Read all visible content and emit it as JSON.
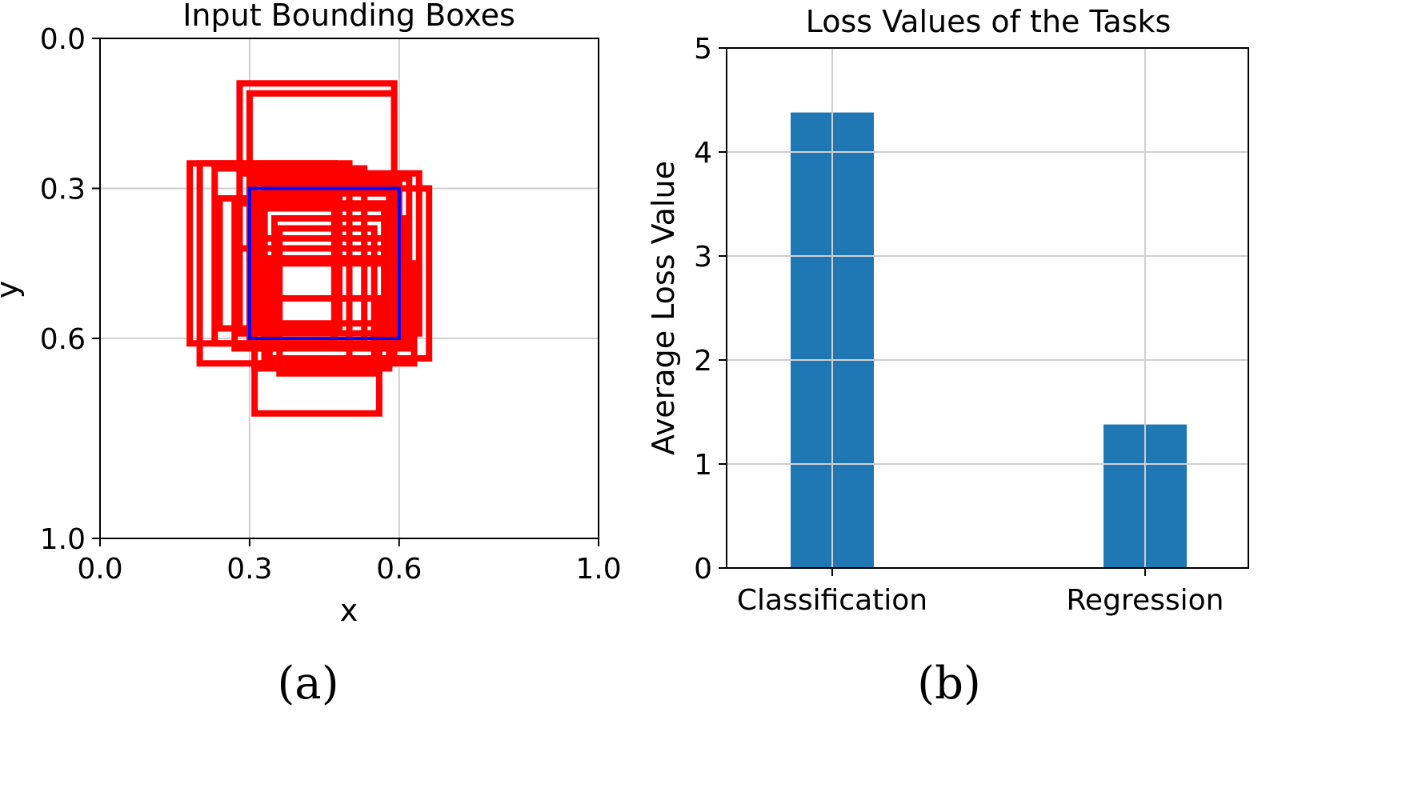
{
  "panel_labels": [
    "(a)",
    "(b)"
  ],
  "chart_data": [
    {
      "type": "scatter",
      "title": "Input Bounding Boxes",
      "xlabel": "x",
      "ylabel": "y",
      "xlim": [
        0.0,
        1.0
      ],
      "ylim": [
        1.0,
        0.0
      ],
      "y_inverted": true,
      "xticks": [
        "0.0",
        "0.3",
        "0.6",
        "1.0"
      ],
      "yticks": [
        "0.0",
        "0.3",
        "0.6",
        "1.0"
      ],
      "grid": true,
      "colors": {
        "input_boxes": "#ff0000",
        "reference_box": "#0000ff"
      },
      "reference_box": {
        "x1": 0.3,
        "y1": 0.3,
        "x2": 0.6,
        "y2": 0.6
      },
      "boxes": [
        {
          "x1": 0.28,
          "y1": 0.09,
          "x2": 0.59,
          "y2": 0.42
        },
        {
          "x1": 0.3,
          "y1": 0.11,
          "x2": 0.59,
          "y2": 0.44
        },
        {
          "x1": 0.18,
          "y1": 0.25,
          "x2": 0.47,
          "y2": 0.61
        },
        {
          "x1": 0.2,
          "y1": 0.25,
          "x2": 0.5,
          "y2": 0.65
        },
        {
          "x1": 0.23,
          "y1": 0.26,
          "x2": 0.53,
          "y2": 0.61
        },
        {
          "x1": 0.28,
          "y1": 0.27,
          "x2": 0.64,
          "y2": 0.59
        },
        {
          "x1": 0.31,
          "y1": 0.28,
          "x2": 0.62,
          "y2": 0.62
        },
        {
          "x1": 0.3,
          "y1": 0.29,
          "x2": 0.6,
          "y2": 0.61
        },
        {
          "x1": 0.33,
          "y1": 0.3,
          "x2": 0.66,
          "y2": 0.64
        },
        {
          "x1": 0.33,
          "y1": 0.34,
          "x2": 0.59,
          "y2": 0.64
        },
        {
          "x1": 0.35,
          "y1": 0.36,
          "x2": 0.61,
          "y2": 0.62
        },
        {
          "x1": 0.36,
          "y1": 0.38,
          "x2": 0.55,
          "y2": 0.67
        },
        {
          "x1": 0.31,
          "y1": 0.4,
          "x2": 0.58,
          "y2": 0.66
        },
        {
          "x1": 0.34,
          "y1": 0.45,
          "x2": 0.63,
          "y2": 0.65
        },
        {
          "x1": 0.31,
          "y1": 0.52,
          "x2": 0.56,
          "y2": 0.75
        },
        {
          "x1": 0.24,
          "y1": 0.32,
          "x2": 0.48,
          "y2": 0.58
        },
        {
          "x1": 0.27,
          "y1": 0.33,
          "x2": 0.57,
          "y2": 0.62
        },
        {
          "x1": 0.32,
          "y1": 0.31,
          "x2": 0.58,
          "y2": 0.57
        }
      ]
    },
    {
      "type": "bar",
      "title": "Loss Values of the Tasks",
      "xlabel": "",
      "ylabel": "Average Loss Value",
      "categories": [
        "Classification",
        "Regression"
      ],
      "values": [
        4.38,
        1.38
      ],
      "ylim": [
        0,
        5
      ],
      "yticks": [
        "0",
        "1",
        "2",
        "3",
        "4",
        "5"
      ],
      "grid": true,
      "colors": {
        "bar": "#1f77b4"
      }
    }
  ]
}
